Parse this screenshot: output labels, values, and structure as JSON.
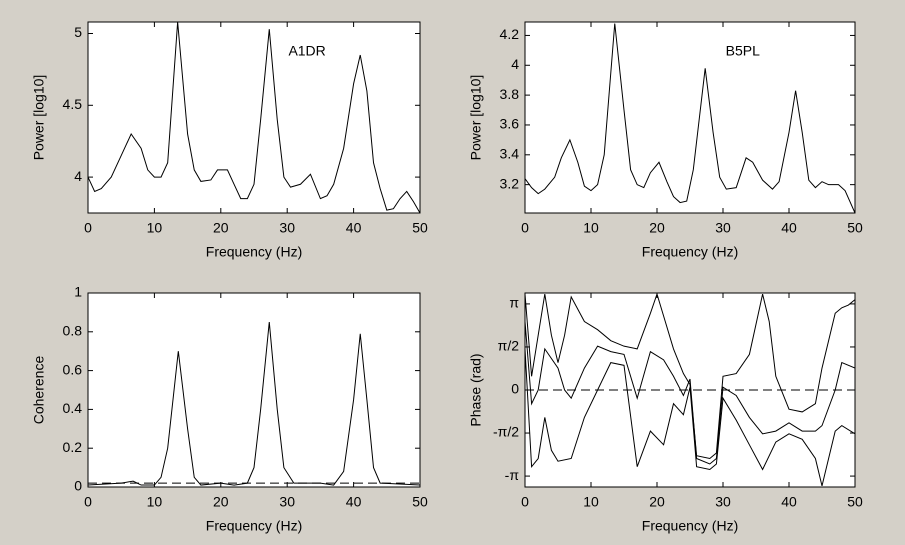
{
  "chart_data": [
    {
      "type": "line",
      "annotation": "A1DR",
      "xlabel": "Frequency (Hz)",
      "ylabel": "Power [log10]",
      "xlim": [
        0,
        50
      ],
      "xticks": [
        0,
        10,
        20,
        30,
        40,
        50
      ],
      "ylim": [
        3.75,
        5.08
      ],
      "yticks": [
        4,
        4.5,
        5
      ],
      "series": [
        {
          "color": "#000000",
          "x": [
            0,
            1,
            2,
            3.5,
            5,
            6.5,
            8,
            9,
            10,
            11,
            12,
            13.5,
            15,
            16,
            17,
            18.5,
            19.5,
            21,
            22,
            23,
            24,
            25,
            26,
            27.3,
            28.5,
            29.5,
            30.5,
            32,
            33.5,
            35,
            36,
            37,
            38.5,
            40,
            41,
            42,
            43,
            44,
            45,
            46,
            47,
            48,
            49,
            50
          ],
          "values": [
            4.0,
            3.9,
            3.92,
            4.0,
            4.15,
            4.3,
            4.2,
            4.05,
            4.0,
            4.0,
            4.1,
            5.08,
            4.3,
            4.05,
            3.97,
            3.98,
            4.05,
            4.05,
            3.95,
            3.85,
            3.85,
            3.95,
            4.4,
            5.03,
            4.4,
            4.0,
            3.93,
            3.95,
            4.02,
            3.85,
            3.87,
            3.95,
            4.2,
            4.65,
            4.85,
            4.6,
            4.1,
            3.92,
            3.77,
            3.78,
            3.85,
            3.9,
            3.83,
            3.75
          ]
        }
      ]
    },
    {
      "type": "line",
      "annotation": "B5PL",
      "xlabel": "Frequency (Hz)",
      "ylabel": "Power [log10]",
      "xlim": [
        0,
        50
      ],
      "xticks": [
        0,
        10,
        20,
        30,
        40,
        50
      ],
      "ylim": [
        3.01,
        4.29
      ],
      "yticks": [
        3.2,
        3.4,
        3.6,
        3.8,
        4,
        4.2
      ],
      "series": [
        {
          "color": "#000000",
          "x": [
            0,
            1,
            2,
            3,
            4.5,
            5.5,
            6.8,
            8,
            9,
            10,
            11,
            12,
            13.6,
            15,
            16,
            17,
            18,
            19,
            20.3,
            21.5,
            22.5,
            23.5,
            24.5,
            25.5,
            27.3,
            28.5,
            29.5,
            30.5,
            32,
            33.5,
            34.5,
            36,
            37.5,
            38.5,
            40,
            41,
            42,
            43,
            44,
            45,
            46,
            47.5,
            48.5,
            50
          ],
          "values": [
            3.24,
            3.18,
            3.14,
            3.17,
            3.25,
            3.38,
            3.5,
            3.35,
            3.19,
            3.16,
            3.2,
            3.4,
            4.28,
            3.7,
            3.3,
            3.2,
            3.18,
            3.28,
            3.35,
            3.22,
            3.12,
            3.08,
            3.09,
            3.3,
            3.98,
            3.55,
            3.25,
            3.17,
            3.18,
            3.38,
            3.35,
            3.23,
            3.17,
            3.22,
            3.55,
            3.83,
            3.55,
            3.23,
            3.18,
            3.22,
            3.2,
            3.2,
            3.16,
            3.01
          ]
        }
      ]
    },
    {
      "type": "line",
      "xlabel": "Frequency (Hz)",
      "ylabel": "Coherence",
      "xlim": [
        0,
        50
      ],
      "xticks": [
        0,
        10,
        20,
        30,
        40,
        50
      ],
      "ylim": [
        0,
        1
      ],
      "yticks": [
        0,
        0.2,
        0.4,
        0.6,
        0.8,
        1
      ],
      "reference_line": 0.02,
      "series": [
        {
          "color": "#000000",
          "x": [
            0,
            5,
            6.8,
            8,
            10,
            11,
            12,
            13.6,
            15,
            16,
            17,
            20,
            22,
            24,
            25,
            26,
            27.3,
            28.5,
            29.5,
            31,
            35,
            37,
            38.5,
            40,
            41,
            42,
            43,
            44,
            50
          ],
          "values": [
            0.01,
            0.02,
            0.03,
            0.01,
            0.01,
            0.05,
            0.2,
            0.7,
            0.3,
            0.05,
            0.01,
            0.02,
            0.01,
            0.02,
            0.1,
            0.4,
            0.85,
            0.4,
            0.1,
            0.02,
            0.02,
            0.01,
            0.08,
            0.45,
            0.79,
            0.45,
            0.1,
            0.02,
            0.01
          ]
        }
      ]
    },
    {
      "type": "line",
      "xlabel": "Frequency (Hz)",
      "ylabel": "Phase (rad)",
      "xlim": [
        0,
        50
      ],
      "xticks": [
        0,
        10,
        20,
        30,
        40,
        50
      ],
      "ylim": [
        -3.54,
        3.54
      ],
      "yticks": [
        {
          "value": -3.1416,
          "label": "-π"
        },
        {
          "value": -1.5708,
          "label": "-π/2"
        },
        0,
        {
          "value": 1.5708,
          "label": "π/2"
        },
        {
          "value": 3.1416,
          "label": "π"
        }
      ],
      "reference_line": 0,
      "series": [
        {
          "color": "#000000",
          "x": [
            0,
            1,
            2,
            3,
            5,
            6,
            7,
            9,
            11,
            13,
            15,
            17,
            19,
            21,
            22.5,
            24,
            25,
            26,
            28,
            29,
            30,
            32,
            34,
            36,
            38,
            40,
            42,
            44,
            45,
            47,
            48,
            50
          ],
          "values": [
            2.5,
            -0.5,
            0,
            1.5,
            0.8,
            0,
            -0.3,
            0.8,
            1.6,
            1.4,
            1.3,
            -0.3,
            1.4,
            1.1,
            0.5,
            -0.2,
            0.4,
            -2.5,
            -2.7,
            -2.5,
            0.1,
            -0.2,
            -1.0,
            -1.6,
            -1.5,
            -1.2,
            -1.5,
            -1.5,
            -1.3,
            0,
            1.0,
            0.8
          ]
        },
        {
          "color": "#000000",
          "x": [
            0,
            1,
            2,
            3,
            4,
            5,
            6,
            7,
            9,
            11,
            13,
            15,
            17,
            19,
            20,
            21,
            22.5,
            24,
            25,
            26,
            28,
            29,
            30,
            32,
            34,
            36,
            37,
            38,
            40,
            42,
            44,
            45,
            47,
            48,
            49,
            50
          ],
          "values": [
            3.5,
            0.5,
            2,
            3.5,
            2,
            1,
            2,
            3.4,
            2.5,
            2.2,
            1.8,
            1.6,
            1.5,
            2.8,
            3.5,
            2.7,
            1.5,
            0.6,
            0.2,
            -2.4,
            -2.5,
            -2.3,
            0.5,
            0.6,
            1.3,
            3.5,
            2.5,
            0.5,
            -0.7,
            -0.8,
            -0.5,
            0.8,
            2.8,
            3.0,
            3.1,
            3.3
          ]
        },
        {
          "color": "#000000",
          "x": [
            0,
            1,
            2,
            3,
            4,
            5,
            7,
            9,
            11,
            13,
            15,
            17,
            19,
            21,
            22.5,
            24,
            25,
            26,
            28,
            29,
            30,
            32,
            34,
            36,
            38,
            40,
            42,
            44,
            45,
            47,
            48,
            50
          ],
          "values": [
            1.5,
            -2.8,
            -2.5,
            -1,
            -2.2,
            -2.6,
            -2.5,
            -1,
            0,
            1,
            0.9,
            -2.8,
            -1.5,
            -2,
            -0.5,
            -0.9,
            0.1,
            -2.8,
            -2.9,
            -2.7,
            -0.3,
            -1.1,
            -2.0,
            -2.9,
            -1.9,
            -1.6,
            -1.8,
            -2.5,
            -3.5,
            -1.5,
            -1.3,
            -1.6
          ]
        }
      ]
    }
  ]
}
